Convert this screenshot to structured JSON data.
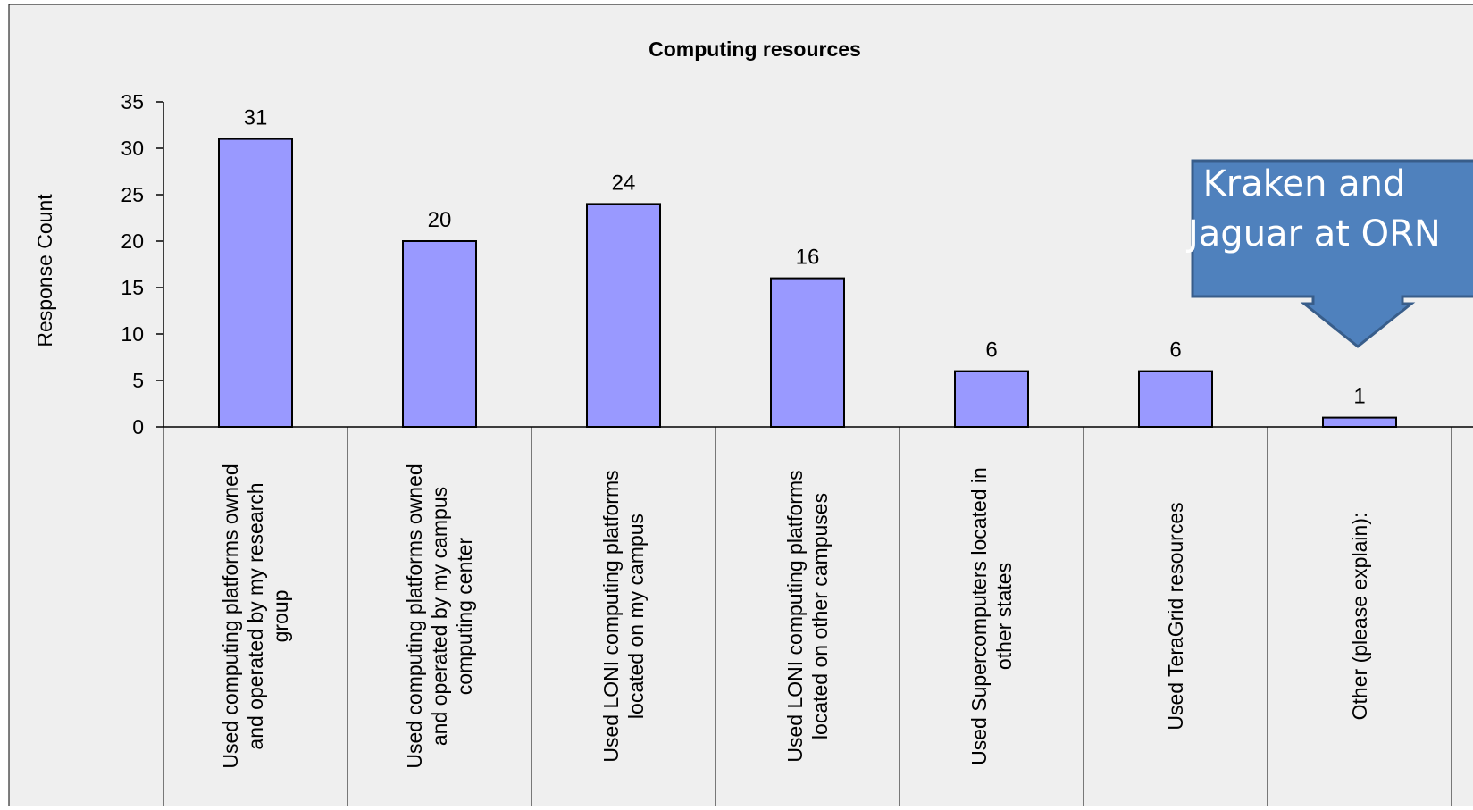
{
  "chart_data": {
    "type": "bar",
    "title": "Computing resources",
    "ylabel": "Response Count",
    "xlabel": "",
    "ylim": [
      0,
      35
    ],
    "yticks": [
      0,
      5,
      10,
      15,
      20,
      25,
      30,
      35
    ],
    "categories": [
      [
        "Used computing platforms owned",
        "and operated by my research",
        "group"
      ],
      [
        "Used computing platforms owned",
        "and operated by my campus",
        "computing center"
      ],
      [
        "Used LONI computing platforms",
        "located on my campus"
      ],
      [
        "Used LONI computing platforms",
        "located on other campuses"
      ],
      [
        "Used Supercomputers located in",
        "other states"
      ],
      [
        "Used TeraGrid resources"
      ],
      [
        "Other (please explain):"
      ]
    ],
    "values": [
      31,
      20,
      24,
      16,
      6,
      6,
      1
    ],
    "data_labels": true,
    "grid": false,
    "legend": "none",
    "colors": {
      "bar_fill": "#9999ff",
      "bar_stroke": "#000000",
      "plot_background": "#efefef",
      "frame": "#000000"
    },
    "annotations": [
      {
        "text_lines": [
          "Kraken and",
          "Jaguar at ORN"
        ],
        "style": "down-arrow-callout",
        "points_to": "Other (please explain):",
        "fill": "#4f81bd",
        "stroke": "#385d8a",
        "text_color": "#ffffff"
      }
    ]
  }
}
